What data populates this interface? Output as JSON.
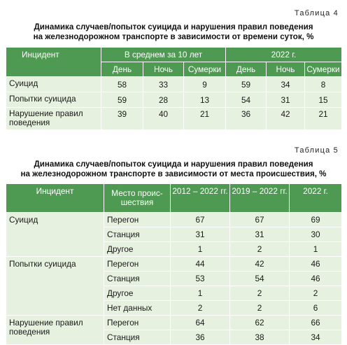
{
  "table4": {
    "label": "Таблица 4",
    "caption_line1": "Динамика случаев/попыток суицида и нарушения правил поведения",
    "caption_line2": "на железнодорожном транспорте в зависимости от времени суток, %",
    "header": {
      "incident": "Инцидент",
      "group1": "В среднем за 10 лет",
      "group2": "2022 г.",
      "sub": [
        "День",
        "Ночь",
        "Сумерки",
        "День",
        "Ночь",
        "Сумерки"
      ]
    },
    "rows": [
      {
        "incident": "Суицид",
        "values": [
          "58",
          "33",
          "9",
          "59",
          "34",
          "8"
        ]
      },
      {
        "incident": "Попытки суицида",
        "values": [
          "59",
          "28",
          "13",
          "54",
          "31",
          "15"
        ]
      },
      {
        "incident_line1": "Нарушение правил",
        "incident_line2": "поведения",
        "values": [
          "39",
          "40",
          "21",
          "36",
          "42",
          "21"
        ]
      }
    ]
  },
  "table5": {
    "label": "Таблица 5",
    "caption_line1": "Динамика случаев/попыток суицида и нарушения правил поведения",
    "caption_line2": "на железнодорожном транспорте в зависимости от места происшествия, %",
    "header": {
      "incident": "Инцидент",
      "place_line1": "Место проис-",
      "place_line2": "шествия",
      "col1": "2012 – 2022 гг.",
      "col2": "2019 – 2022 гг.",
      "col3": "2022 г."
    },
    "groups": [
      {
        "incident": "Суицид",
        "rows": [
          {
            "place": "Перегон",
            "values": [
              "67",
              "67",
              "69"
            ]
          },
          {
            "place": "Станция",
            "values": [
              "31",
              "31",
              "30"
            ]
          },
          {
            "place": "Другое",
            "values": [
              "1",
              "2",
              "1"
            ]
          }
        ]
      },
      {
        "incident": "Попытки суицида",
        "rows": [
          {
            "place": "Перегон",
            "values": [
              "44",
              "42",
              "46"
            ]
          },
          {
            "place": "Станция",
            "values": [
              "53",
              "54",
              "46"
            ]
          },
          {
            "place": "Другое",
            "values": [
              "1",
              "2",
              "2"
            ]
          },
          {
            "place": "Нет данных",
            "values": [
              "2",
              "2",
              "6"
            ]
          }
        ]
      },
      {
        "incident_line1": "Нарушение правил",
        "incident_line2": "поведения",
        "rows": [
          {
            "place": "Перегон",
            "values": [
              "64",
              "62",
              "66"
            ]
          },
          {
            "place": "Станция",
            "values": [
              "36",
              "38",
              "34"
            ]
          }
        ]
      }
    ]
  }
}
